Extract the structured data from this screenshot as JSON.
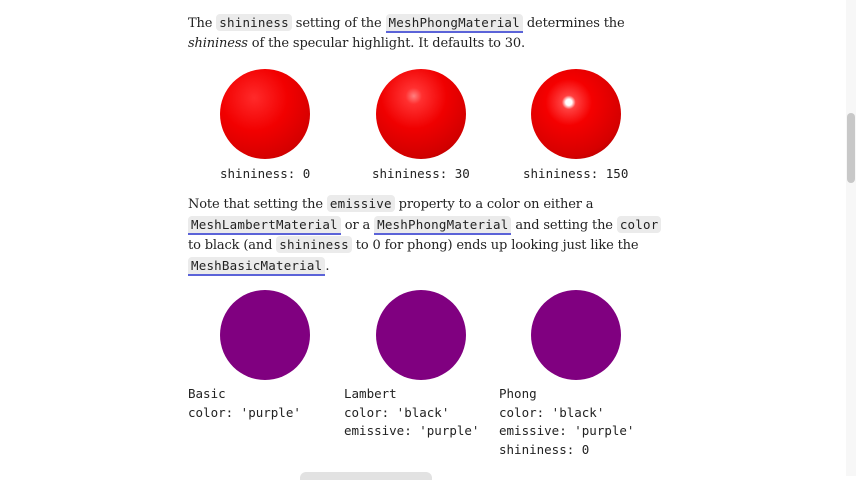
{
  "paragraph1": {
    "t1": "The ",
    "code_shininess": "shininess",
    "t2": " setting of the ",
    "link_phong": "MeshPhongMaterial",
    "t3": " determines the ",
    "em_shininess": "shininess",
    "t4": " of the specular highlight. It defaults to 30."
  },
  "shininess_examples": [
    {
      "label": "shininess: 0"
    },
    {
      "label": "shininess: 30"
    },
    {
      "label": "shininess: 150"
    }
  ],
  "paragraph2": {
    "t1": "Note that setting the ",
    "code_emissive": "emissive",
    "t2": " property to a color on either a ",
    "link_lambert": "MeshLambertMaterial",
    "t3": " or a ",
    "link_phong": "MeshPhongMaterial",
    "t4": " and setting the ",
    "code_color": "color",
    "t5": " to black (and ",
    "code_shininess": "shininess",
    "t6": " to 0 for phong) ends up looking just like the ",
    "link_basic": "MeshBasicMaterial",
    "t7": "."
  },
  "material_examples": [
    {
      "lines": [
        "Basic",
        "color: 'purple'"
      ]
    },
    {
      "lines": [
        "Lambert",
        "color: 'black'",
        "emissive: 'purple'"
      ]
    },
    {
      "lines": [
        "Phong",
        "color: 'black'",
        "emissive: 'purple'",
        "shininess: 0"
      ]
    }
  ],
  "colors": {
    "sphere_red": "#ff0000",
    "sphere_purple": "#800080",
    "link_underline": "#5b63d8",
    "code_background": "#ebebeb"
  }
}
